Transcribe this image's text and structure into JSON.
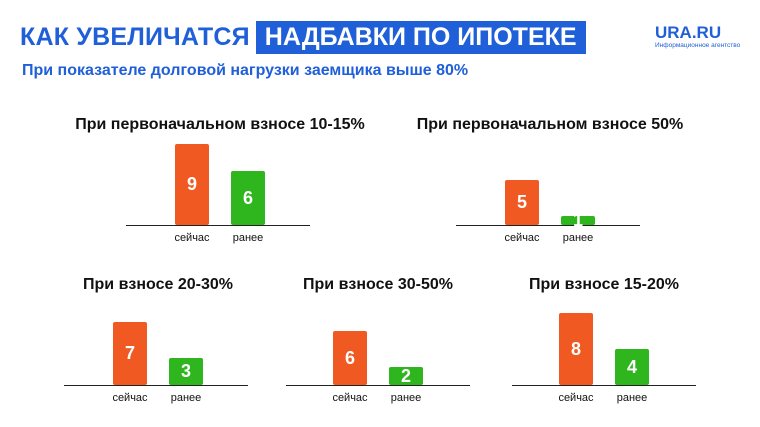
{
  "header": {
    "title_plain": "КАК УВЕЛИЧАТСЯ",
    "title_highlight": "НАДБАВКИ ПО ИПОТЕКЕ",
    "subtitle": "При показателе долговой нагрузки заемщика выше 80%"
  },
  "logo": {
    "main": "URA.RU",
    "sub": "Информационное агентство"
  },
  "colors": {
    "accent": "#1f5fd8",
    "now_bar": "#f05a22",
    "before_bar": "#2fb51d"
  },
  "chart_data": [
    {
      "type": "bar",
      "title": "При первоначальном взносе 10-15%",
      "categories": [
        "сейчас",
        "ранее"
      ],
      "values": [
        9,
        6
      ]
    },
    {
      "type": "bar",
      "title": "При первоначальном взносе 50%",
      "categories": [
        "сейчас",
        "ранее"
      ],
      "values": [
        5,
        1
      ]
    },
    {
      "type": "bar",
      "title": "При взносе 20-30%",
      "categories": [
        "сейчас",
        "ранее"
      ],
      "values": [
        7,
        3
      ]
    },
    {
      "type": "bar",
      "title": "При взносе 30-50%",
      "categories": [
        "сейчас",
        "ранее"
      ],
      "values": [
        6,
        2
      ]
    },
    {
      "type": "bar",
      "title": "При взносе 15-20%",
      "categories": [
        "сейчас",
        "ранее"
      ],
      "values": [
        8,
        4
      ]
    }
  ]
}
